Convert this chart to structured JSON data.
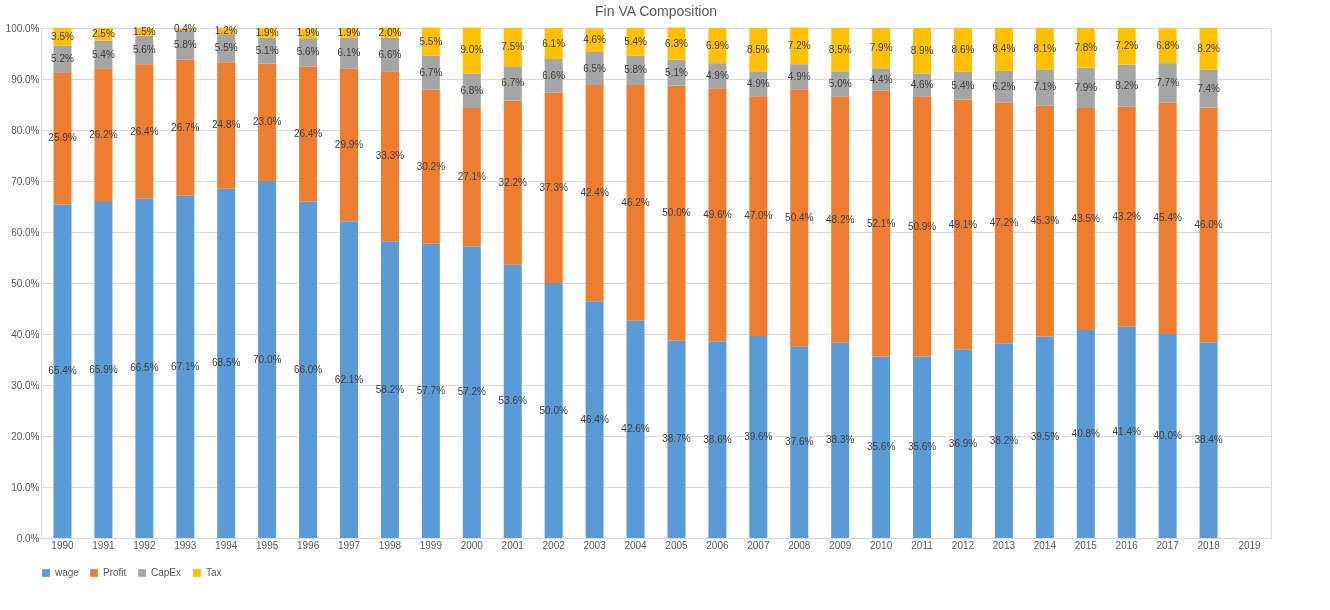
{
  "chart_data": {
    "type": "bar",
    "title": "Fin VA Composition",
    "stacked": true,
    "legend": "bottom",
    "grid": "y",
    "categories": [
      "1990",
      "1991",
      "1992",
      "1993",
      "1994",
      "1995",
      "1996",
      "1997",
      "1998",
      "1999",
      "2000",
      "2001",
      "2002",
      "2003",
      "2004",
      "2005",
      "2006",
      "2007",
      "2008",
      "2009",
      "2010",
      "2011",
      "2012",
      "2013",
      "2014",
      "2015",
      "2016",
      "2017",
      "2018",
      "2019"
    ],
    "ylim": [
      0,
      100
    ],
    "yticks": [
      {
        "value": 0,
        "label": "0.0%"
      },
      {
        "value": 10,
        "label": "10.0%"
      },
      {
        "value": 20,
        "label": "20.0%"
      },
      {
        "value": 30,
        "label": "30.0%"
      },
      {
        "value": 40,
        "label": "40.0%"
      },
      {
        "value": 50,
        "label": "50.0%"
      },
      {
        "value": 60,
        "label": "60.0%"
      },
      {
        "value": 70,
        "label": "70.0%"
      },
      {
        "value": 80,
        "label": "80.0%"
      },
      {
        "value": 90,
        "label": "90.0%"
      },
      {
        "value": 100,
        "label": "100.0%"
      }
    ],
    "series": [
      {
        "name": "wage",
        "color": "#5b9bd5",
        "values": [
          65.4,
          65.9,
          66.5,
          67.1,
          68.5,
          70.0,
          66.0,
          62.1,
          58.2,
          57.7,
          57.2,
          53.6,
          50.0,
          46.4,
          42.6,
          38.7,
          38.6,
          39.6,
          37.6,
          38.3,
          35.6,
          35.6,
          36.9,
          38.2,
          39.5,
          40.8,
          41.4,
          40.0,
          38.4,
          null
        ],
        "value_labels": [
          "65.4%",
          "65.9%",
          "66.5%",
          "67.1%",
          "68.5%",
          "70.0%",
          "66.0%",
          "62.1%",
          "58.2%",
          "57.7%",
          "57.2%",
          "53.6%",
          "50.0%",
          "46.4%",
          "42.6%",
          "38.7%",
          "38.6%",
          "39.6%",
          "37.6%",
          "38.3%",
          "35.6%",
          "35.6%",
          "36.9%",
          "38.2%",
          "39.5%",
          "40.8%",
          "41.4%",
          "40.0%",
          "38.4%",
          null
        ]
      },
      {
        "name": "Profit",
        "color": "#ed7d31",
        "values": [
          25.9,
          26.2,
          26.4,
          26.7,
          24.8,
          23.0,
          26.4,
          29.9,
          33.3,
          30.2,
          27.1,
          32.2,
          37.3,
          42.4,
          46.2,
          50.0,
          49.6,
          47.0,
          50.4,
          48.2,
          52.1,
          50.9,
          49.1,
          47.2,
          45.3,
          43.5,
          43.2,
          45.4,
          46.0,
          null
        ],
        "value_labels": [
          "25.9%",
          "26.2%",
          "26.4%",
          "26.7%",
          "24.8%",
          "23.0%",
          "26.4%",
          "29.9%",
          "33.3%",
          "30.2%",
          "27.1%",
          "32.2%",
          "37.3%",
          "42.4%",
          "46.2%",
          "50.0%",
          "49.6%",
          "47.0%",
          "50.4%",
          "48.2%",
          "52.1%",
          "50.9%",
          "49.1%",
          "47.2%",
          "45.3%",
          "43.5%",
          "43.2%",
          "45.4%",
          "46.0%",
          null
        ]
      },
      {
        "name": "CapEx",
        "color": "#a5a5a5",
        "values": [
          5.2,
          5.4,
          5.6,
          5.8,
          5.5,
          5.1,
          5.6,
          6.1,
          6.6,
          6.7,
          6.8,
          6.7,
          6.6,
          6.5,
          5.8,
          5.1,
          4.9,
          4.9,
          4.9,
          5.0,
          4.4,
          4.6,
          5.4,
          6.2,
          7.1,
          7.9,
          8.2,
          7.7,
          7.4,
          null
        ],
        "value_labels": [
          "5.2%",
          "5.4%",
          "5.6%",
          "5.8%",
          "5.5%",
          "5.1%",
          "5.6%",
          "6.1%",
          "6.6%",
          "6.7%",
          "6.8%",
          "6.7%",
          "6.6%",
          "6.5%",
          "5.8%",
          "5.1%",
          "4.9%",
          "4.9%",
          "4.9%",
          "5.0%",
          "4.4%",
          "4.6%",
          "5.4%",
          "6.2%",
          "7.1%",
          "7.9%",
          "8.2%",
          "7.7%",
          "7.4%",
          null
        ]
      },
      {
        "name": "Tax",
        "color": "#ffc000",
        "values": [
          3.5,
          2.5,
          1.5,
          0.4,
          1.2,
          1.9,
          1.9,
          1.9,
          2.0,
          5.5,
          9.0,
          7.5,
          6.1,
          4.6,
          5.4,
          6.3,
          6.9,
          8.5,
          7.2,
          8.5,
          7.9,
          8.9,
          8.6,
          8.4,
          8.1,
          7.8,
          7.2,
          6.8,
          8.2,
          null
        ],
        "value_labels": [
          "3.5%",
          "2.5%",
          "1.5%",
          "0.4%",
          "1.2%",
          "1.9%",
          "1.9%",
          "1.9%",
          "2.0%",
          "5.5%",
          "9.0%",
          "7.5%",
          "6.1%",
          "4.6%",
          "5.4%",
          "6.3%",
          "6.9%",
          "8.5%",
          "7.2%",
          "8.5%",
          "7.9%",
          "8.9%",
          "8.6%",
          "8.4%",
          "8.1%",
          "7.8%",
          "7.2%",
          "6.8%",
          "8.2%",
          null
        ]
      }
    ]
  }
}
